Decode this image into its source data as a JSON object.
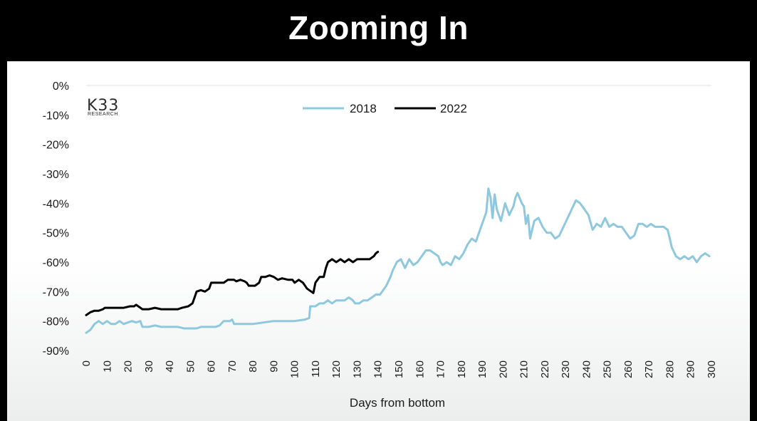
{
  "header": {
    "title": "Zooming In"
  },
  "logo": {
    "main": "K33",
    "sub": "RESEARCH"
  },
  "chart_data": {
    "type": "line",
    "xlabel": "Days from bottom",
    "ylabel": "",
    "xlim": [
      0,
      300
    ],
    "ylim": [
      -90,
      0
    ],
    "x_ticks": [
      0,
      10,
      20,
      30,
      40,
      50,
      60,
      70,
      80,
      90,
      100,
      110,
      120,
      130,
      140,
      150,
      160,
      170,
      180,
      190,
      200,
      210,
      220,
      230,
      240,
      250,
      260,
      270,
      280,
      290,
      300
    ],
    "y_ticks": [
      "0%",
      "-10%",
      "-20%",
      "-30%",
      "-40%",
      "-50%",
      "-60%",
      "-70%",
      "-80%",
      "-90%"
    ],
    "grid": "horizontal-top",
    "legend": "top-center",
    "series": [
      {
        "name": "2018",
        "color": "#8ec8de",
        "points": [
          [
            0,
            -84
          ],
          [
            2,
            -83
          ],
          [
            4,
            -81
          ],
          [
            6,
            -80
          ],
          [
            8,
            -81
          ],
          [
            10,
            -80
          ],
          [
            12,
            -81
          ],
          [
            14,
            -81
          ],
          [
            16,
            -80
          ],
          [
            18,
            -81
          ],
          [
            20,
            -80.5
          ],
          [
            22,
            -80
          ],
          [
            24,
            -80.5
          ],
          [
            26,
            -80
          ],
          [
            27,
            -82
          ],
          [
            30,
            -82
          ],
          [
            33,
            -81.5
          ],
          [
            36,
            -82
          ],
          [
            40,
            -82
          ],
          [
            44,
            -82
          ],
          [
            47,
            -82.5
          ],
          [
            50,
            -82.5
          ],
          [
            53,
            -82.5
          ],
          [
            55,
            -82
          ],
          [
            58,
            -82
          ],
          [
            62,
            -82
          ],
          [
            64,
            -81.5
          ],
          [
            66,
            -80
          ],
          [
            69,
            -80
          ],
          [
            70,
            -79.5
          ],
          [
            71,
            -81
          ],
          [
            75,
            -81
          ],
          [
            80,
            -81
          ],
          [
            85,
            -80.5
          ],
          [
            90,
            -80
          ],
          [
            95,
            -80
          ],
          [
            100,
            -80
          ],
          [
            105,
            -79.5
          ],
          [
            107,
            -79
          ],
          [
            107.5,
            -75
          ],
          [
            110,
            -75
          ],
          [
            112,
            -74
          ],
          [
            114,
            -74
          ],
          [
            116,
            -73
          ],
          [
            118,
            -74
          ],
          [
            120,
            -73
          ],
          [
            124,
            -73
          ],
          [
            126,
            -72
          ],
          [
            128,
            -73
          ],
          [
            129,
            -74
          ],
          [
            131,
            -74
          ],
          [
            133,
            -73
          ],
          [
            135,
            -73
          ],
          [
            137,
            -72
          ],
          [
            139,
            -71
          ],
          [
            141,
            -71
          ],
          [
            142,
            -70
          ],
          [
            144,
            -68
          ],
          [
            146,
            -65
          ],
          [
            147,
            -63
          ],
          [
            149,
            -60
          ],
          [
            151,
            -59
          ],
          [
            153,
            -62
          ],
          [
            155,
            -59
          ],
          [
            157,
            -61
          ],
          [
            159,
            -60
          ],
          [
            161,
            -58
          ],
          [
            163,
            -56
          ],
          [
            165,
            -56
          ],
          [
            167,
            -57
          ],
          [
            169,
            -58
          ],
          [
            170,
            -60
          ],
          [
            171,
            -61
          ],
          [
            173,
            -60
          ],
          [
            175,
            -61
          ],
          [
            177,
            -58
          ],
          [
            179,
            -59
          ],
          [
            181,
            -57
          ],
          [
            183,
            -54
          ],
          [
            185,
            -52
          ],
          [
            187,
            -53
          ],
          [
            189,
            -49
          ],
          [
            191,
            -45
          ],
          [
            192,
            -43
          ],
          [
            193,
            -35
          ],
          [
            194,
            -38
          ],
          [
            195,
            -45
          ],
          [
            196,
            -37
          ],
          [
            197,
            -42
          ],
          [
            199,
            -46
          ],
          [
            201,
            -40
          ],
          [
            203,
            -44
          ],
          [
            205,
            -41
          ],
          [
            206,
            -38
          ],
          [
            207,
            -36.5
          ],
          [
            209,
            -40
          ],
          [
            210,
            -41
          ],
          [
            211,
            -47
          ],
          [
            212,
            -44
          ],
          [
            213,
            -52
          ],
          [
            215,
            -46
          ],
          [
            217,
            -45
          ],
          [
            219,
            -48
          ],
          [
            221,
            -50
          ],
          [
            223,
            -50
          ],
          [
            225,
            -52
          ],
          [
            227,
            -51
          ],
          [
            229,
            -48
          ],
          [
            231,
            -45
          ],
          [
            233,
            -42
          ],
          [
            235,
            -39
          ],
          [
            237,
            -40
          ],
          [
            239,
            -42
          ],
          [
            241,
            -44
          ],
          [
            243,
            -49
          ],
          [
            245,
            -47
          ],
          [
            247,
            -48
          ],
          [
            249,
            -45
          ],
          [
            251,
            -48
          ],
          [
            253,
            -47
          ],
          [
            255,
            -48
          ],
          [
            257,
            -48
          ],
          [
            259,
            -50
          ],
          [
            261,
            -52
          ],
          [
            263,
            -51
          ],
          [
            265,
            -47
          ],
          [
            267,
            -47
          ],
          [
            269,
            -48
          ],
          [
            271,
            -47
          ],
          [
            273,
            -48
          ],
          [
            275,
            -48
          ],
          [
            277,
            -48
          ],
          [
            279,
            -49
          ],
          [
            280,
            -52
          ],
          [
            281,
            -55
          ],
          [
            283,
            -58
          ],
          [
            285,
            -59
          ],
          [
            287,
            -58
          ],
          [
            289,
            -59
          ],
          [
            291,
            -58
          ],
          [
            293,
            -60
          ],
          [
            295,
            -58
          ],
          [
            297,
            -57
          ],
          [
            299,
            -58
          ]
        ]
      },
      {
        "name": "2022",
        "color": "#000000",
        "points": [
          [
            0,
            -78
          ],
          [
            2,
            -77
          ],
          [
            4,
            -76.5
          ],
          [
            6,
            -76.5
          ],
          [
            8,
            -76
          ],
          [
            9,
            -75.5
          ],
          [
            12,
            -75.5
          ],
          [
            15,
            -75.5
          ],
          [
            18,
            -75.5
          ],
          [
            21,
            -75
          ],
          [
            23,
            -75
          ],
          [
            24,
            -74.5
          ],
          [
            25,
            -75
          ],
          [
            27,
            -76
          ],
          [
            30,
            -76
          ],
          [
            33,
            -75.5
          ],
          [
            36,
            -76
          ],
          [
            40,
            -76
          ],
          [
            44,
            -76
          ],
          [
            46,
            -75.5
          ],
          [
            49,
            -75
          ],
          [
            51,
            -74
          ],
          [
            52,
            -72
          ],
          [
            53,
            -70
          ],
          [
            55,
            -69.5
          ],
          [
            57,
            -70
          ],
          [
            59,
            -69
          ],
          [
            60,
            -67
          ],
          [
            63,
            -67
          ],
          [
            66,
            -67
          ],
          [
            68,
            -66
          ],
          [
            71,
            -66
          ],
          [
            72,
            -66.5
          ],
          [
            74,
            -66
          ],
          [
            76,
            -66.5
          ],
          [
            77,
            -67
          ],
          [
            78,
            -68
          ],
          [
            81,
            -68
          ],
          [
            83,
            -67
          ],
          [
            84,
            -65
          ],
          [
            86,
            -65
          ],
          [
            88,
            -64.5
          ],
          [
            90,
            -65
          ],
          [
            92,
            -66
          ],
          [
            94,
            -65.5
          ],
          [
            97,
            -66
          ],
          [
            99,
            -66
          ],
          [
            100,
            -67
          ],
          [
            102,
            -66
          ],
          [
            104,
            -67
          ],
          [
            106,
            -69
          ],
          [
            108,
            -70
          ],
          [
            109,
            -70.5
          ],
          [
            110,
            -67
          ],
          [
            112,
            -65
          ],
          [
            114,
            -65
          ],
          [
            115,
            -62
          ],
          [
            116,
            -60
          ],
          [
            118,
            -59
          ],
          [
            120,
            -60
          ],
          [
            122,
            -59
          ],
          [
            124,
            -60
          ],
          [
            126,
            -59
          ],
          [
            128,
            -60
          ],
          [
            130,
            -59
          ],
          [
            132,
            -59
          ],
          [
            134,
            -59
          ],
          [
            136,
            -59
          ],
          [
            138,
            -58
          ],
          [
            139,
            -57
          ],
          [
            140,
            -56.5
          ]
        ]
      }
    ]
  }
}
